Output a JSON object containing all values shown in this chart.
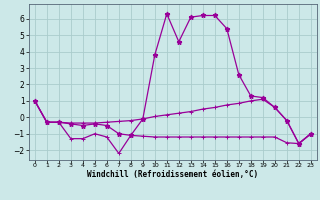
{
  "xlabel": "Windchill (Refroidissement éolien,°C)",
  "background_color": "#cce8e8",
  "grid_color": "#aacccc",
  "line_color": "#990099",
  "xlim": [
    -0.5,
    23.5
  ],
  "ylim": [
    -2.6,
    6.9
  ],
  "yticks": [
    -2,
    -1,
    0,
    1,
    2,
    3,
    4,
    5,
    6
  ],
  "xticks": [
    0,
    1,
    2,
    3,
    4,
    5,
    6,
    7,
    8,
    9,
    10,
    11,
    12,
    13,
    14,
    15,
    16,
    17,
    18,
    19,
    20,
    21,
    22,
    23
  ],
  "series1_x": [
    0,
    1,
    2,
    3,
    4,
    5,
    6,
    7,
    8,
    9,
    10,
    11,
    12,
    13,
    14,
    15,
    16,
    17,
    18,
    19,
    20,
    21,
    22,
    23
  ],
  "series1_y": [
    1.0,
    -0.3,
    -0.3,
    -0.4,
    -0.5,
    -0.4,
    -0.5,
    -1.0,
    -1.1,
    -0.1,
    3.8,
    6.3,
    4.6,
    6.1,
    6.2,
    6.2,
    5.4,
    2.6,
    1.3,
    1.2,
    0.6,
    -0.2,
    -1.6,
    -1.0
  ],
  "series2_x": [
    0,
    1,
    2,
    3,
    4,
    5,
    6,
    7,
    8,
    9,
    10,
    11,
    12,
    13,
    14,
    15,
    16,
    17,
    18,
    19,
    20,
    21,
    22,
    23
  ],
  "series2_y": [
    1.0,
    -0.3,
    -0.3,
    -0.35,
    -0.35,
    -0.35,
    -0.3,
    -0.25,
    -0.2,
    -0.1,
    0.05,
    0.15,
    0.25,
    0.35,
    0.5,
    0.6,
    0.75,
    0.85,
    1.0,
    1.1,
    0.6,
    -0.2,
    -1.6,
    -1.0
  ],
  "series3_x": [
    0,
    1,
    2,
    3,
    4,
    5,
    6,
    7,
    8,
    9,
    10,
    11,
    12,
    13,
    14,
    15,
    16,
    17,
    18,
    19,
    20,
    21,
    22,
    23
  ],
  "series3_y": [
    1.0,
    -0.3,
    -0.3,
    -1.3,
    -1.3,
    -1.0,
    -1.2,
    -2.2,
    -1.1,
    -1.15,
    -1.2,
    -1.2,
    -1.2,
    -1.2,
    -1.2,
    -1.2,
    -1.2,
    -1.2,
    -1.2,
    -1.2,
    -1.2,
    -1.55,
    -1.6,
    -1.0
  ]
}
